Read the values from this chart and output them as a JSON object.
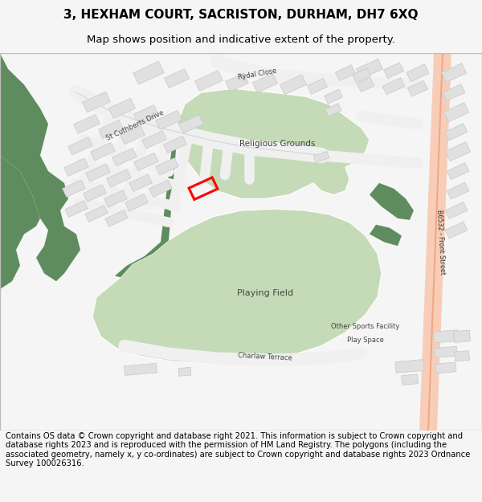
{
  "title_line1": "3, HEXHAM COURT, SACRISTON, DURHAM, DH7 6XQ",
  "title_line2": "Map shows position and indicative extent of the property.",
  "footer_text": "Contains OS data © Crown copyright and database right 2021. This information is subject to Crown copyright and database rights 2023 and is reproduced with the permission of HM Land Registry. The polygons (including the associated geometry, namely x, y co-ordinates) are subject to Crown copyright and database rights 2023 Ordnance Survey 100026316.",
  "bg_color": "#f5f5f5",
  "map_bg": "#ffffff",
  "building_color": "#e0e0e0",
  "building_stroke": "#c8c8c8",
  "green_light": "#c5dbb8",
  "green_dark": "#5e8c5e",
  "road_salmon": "#f0a882",
  "road_salmon_light": "#f8cdb8",
  "property_color": "#ff0000",
  "title_fontsize": 11,
  "subtitle_fontsize": 9.5,
  "footer_fontsize": 7.2,
  "label_color": "#444444"
}
